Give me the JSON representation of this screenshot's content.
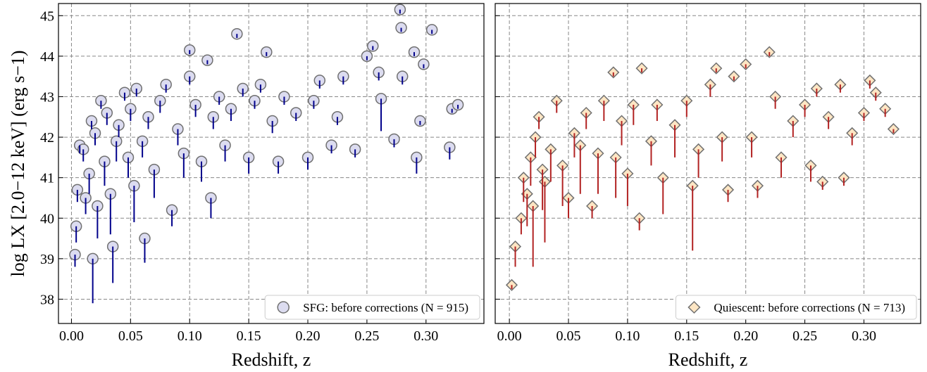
{
  "chart_data": [
    {
      "type": "scatter",
      "xlabel": "Redshift, z",
      "ylabel": "log LX [2.0−12 keV] (erg s−1)",
      "xlim": [
        -0.011,
        0.349
      ],
      "ylim": [
        37.4,
        45.3
      ],
      "xticks": [
        {
          "value": 0,
          "label": "0.00"
        },
        {
          "value": 0.05,
          "label": "0.05"
        },
        {
          "value": 0.1,
          "label": "0.10"
        },
        {
          "value": 0.15,
          "label": "0.15"
        },
        {
          "value": 0.2,
          "label": "0.20"
        },
        {
          "value": 0.25,
          "label": "0.25"
        },
        {
          "value": 0.3,
          "label": "0.30"
        }
      ],
      "yticks": [
        38,
        39,
        40,
        41,
        42,
        43,
        44,
        45
      ],
      "ytick_labels": true,
      "grid": true,
      "legend": "lower right",
      "series": [
        {
          "name": "SFG: before corrections (N = 915)",
          "marker": "circle",
          "color": "#dcdcf0",
          "edgecolor": "#707070",
          "errcolor": "#00008b",
          "x": [
            0.003,
            0.004,
            0.005,
            0.007,
            0.01,
            0.012,
            0.015,
            0.017,
            0.018,
            0.02,
            0.022,
            0.025,
            0.028,
            0.03,
            0.033,
            0.035,
            0.038,
            0.04,
            0.045,
            0.048,
            0.05,
            0.053,
            0.055,
            0.06,
            0.062,
            0.065,
            0.07,
            0.075,
            0.08,
            0.085,
            0.09,
            0.095,
            0.1,
            0.1,
            0.105,
            0.11,
            0.115,
            0.118,
            0.12,
            0.125,
            0.13,
            0.135,
            0.14,
            0.145,
            0.15,
            0.155,
            0.16,
            0.165,
            0.17,
            0.175,
            0.18,
            0.19,
            0.2,
            0.205,
            0.21,
            0.22,
            0.225,
            0.23,
            0.24,
            0.25,
            0.255,
            0.26,
            0.262,
            0.273,
            0.278,
            0.279,
            0.28,
            0.29,
            0.292,
            0.295,
            0.298,
            0.305,
            0.32,
            0.322,
            0.327
          ],
          "values": [
            39.1,
            39.8,
            40.7,
            41.8,
            41.7,
            40.5,
            41.1,
            42.4,
            39.0,
            42.1,
            40.3,
            42.9,
            41.4,
            42.6,
            40.6,
            39.3,
            41.9,
            42.3,
            43.1,
            41.5,
            42.7,
            40.8,
            43.2,
            41.9,
            39.5,
            42.5,
            41.2,
            42.9,
            43.3,
            40.2,
            42.2,
            41.6,
            44.15,
            43.5,
            42.8,
            41.4,
            43.9,
            40.5,
            42.5,
            43.0,
            41.8,
            42.7,
            44.55,
            43.2,
            41.5,
            42.9,
            43.3,
            44.1,
            42.4,
            41.4,
            43.0,
            42.6,
            41.5,
            42.9,
            43.4,
            41.8,
            42.5,
            43.5,
            41.7,
            44.0,
            44.25,
            43.6,
            42.95,
            41.95,
            45.15,
            44.7,
            43.5,
            44.1,
            41.5,
            42.4,
            43.8,
            44.65,
            41.75,
            42.7,
            42.8
          ],
          "errors": [
            0.3,
            0.4,
            0.3,
            0.2,
            0.3,
            0.4,
            0.5,
            0.2,
            1.1,
            0.3,
            0.8,
            0.2,
            0.6,
            0.3,
            1.0,
            0.9,
            0.5,
            0.3,
            0.2,
            0.5,
            0.3,
            0.9,
            0.2,
            0.4,
            0.6,
            0.3,
            0.7,
            0.3,
            0.2,
            0.4,
            0.4,
            0.6,
            0.1,
            0.2,
            0.3,
            0.5,
            0.1,
            0.5,
            0.3,
            0.2,
            0.4,
            0.3,
            0.1,
            0.2,
            0.4,
            0.2,
            0.2,
            0.1,
            0.3,
            0.3,
            0.2,
            0.2,
            0.3,
            0.2,
            0.2,
            0.2,
            0.2,
            0.2,
            0.2,
            0.1,
            0.1,
            0.2,
            0.8,
            0.2,
            0.1,
            0.1,
            0.2,
            0.1,
            0.4,
            0.1,
            0.1,
            0.1,
            0.3,
            0.1,
            0.1
          ]
        }
      ]
    },
    {
      "type": "scatter",
      "xlabel": "Redshift, z",
      "xlim": [
        -0.012,
        0.348
      ],
      "ylim": [
        37.4,
        45.3
      ],
      "xticks": [
        {
          "value": 0,
          "label": "0.00"
        },
        {
          "value": 0.05,
          "label": "0.05"
        },
        {
          "value": 0.1,
          "label": "0.10"
        },
        {
          "value": 0.15,
          "label": "0.15"
        },
        {
          "value": 0.2,
          "label": "0.20"
        },
        {
          "value": 0.25,
          "label": "0.25"
        },
        {
          "value": 0.3,
          "label": "0.30"
        }
      ],
      "yticks": [
        38,
        39,
        40,
        41,
        42,
        43,
        44,
        45
      ],
      "ytick_labels": false,
      "grid": true,
      "legend": "lower right",
      "series": [
        {
          "name": "Quiescent: before corrections (N = 713)",
          "marker": "diamond",
          "color": "#fde6c4",
          "edgecolor": "#707070",
          "errcolor": "#b22222",
          "x": [
            0.002,
            0.005,
            0.01,
            0.012,
            0.015,
            0.018,
            0.02,
            0.022,
            0.025,
            0.028,
            0.03,
            0.035,
            0.04,
            0.045,
            0.05,
            0.055,
            0.06,
            0.065,
            0.07,
            0.075,
            0.08,
            0.088,
            0.09,
            0.095,
            0.1,
            0.105,
            0.11,
            0.112,
            0.12,
            0.125,
            0.13,
            0.14,
            0.15,
            0.155,
            0.16,
            0.17,
            0.175,
            0.18,
            0.185,
            0.19,
            0.2,
            0.205,
            0.21,
            0.22,
            0.225,
            0.23,
            0.24,
            0.25,
            0.255,
            0.26,
            0.265,
            0.27,
            0.28,
            0.283,
            0.29,
            0.3,
            0.305,
            0.31,
            0.318,
            0.325
          ],
          "values": [
            38.35,
            39.3,
            40.0,
            41.0,
            40.6,
            41.5,
            40.3,
            42.0,
            42.5,
            41.2,
            40.9,
            41.7,
            42.9,
            41.3,
            40.5,
            42.1,
            41.8,
            42.6,
            40.3,
            41.6,
            42.9,
            43.6,
            41.5,
            42.4,
            41.1,
            42.8,
            40.0,
            43.7,
            41.9,
            42.8,
            41.0,
            42.3,
            42.9,
            40.8,
            41.7,
            43.3,
            43.7,
            42.0,
            40.7,
            43.5,
            43.8,
            42.0,
            40.8,
            44.1,
            43.0,
            41.5,
            42.4,
            42.8,
            41.3,
            43.2,
            40.9,
            42.5,
            43.3,
            41.0,
            42.1,
            42.6,
            43.4,
            43.1,
            42.7,
            42.2
          ],
          "errors": [
            0.1,
            0.5,
            0.4,
            0.6,
            0.8,
            0.7,
            1.5,
            0.5,
            0.3,
            1.0,
            1.5,
            0.8,
            0.3,
            1.0,
            0.5,
            0.6,
            1.2,
            0.4,
            0.3,
            1.0,
            0.5,
            0.1,
            1.0,
            0.6,
            0.8,
            0.5,
            0.3,
            0.1,
            0.6,
            0.4,
            0.9,
            0.8,
            0.4,
            1.6,
            0.7,
            0.3,
            0.1,
            0.6,
            0.3,
            0.1,
            0.1,
            0.5,
            0.3,
            0.1,
            0.3,
            0.5,
            0.4,
            0.3,
            0.4,
            0.2,
            0.2,
            0.3,
            0.2,
            0.2,
            0.3,
            0.2,
            0.2,
            0.2,
            0.2,
            0.1
          ]
        }
      ]
    }
  ]
}
